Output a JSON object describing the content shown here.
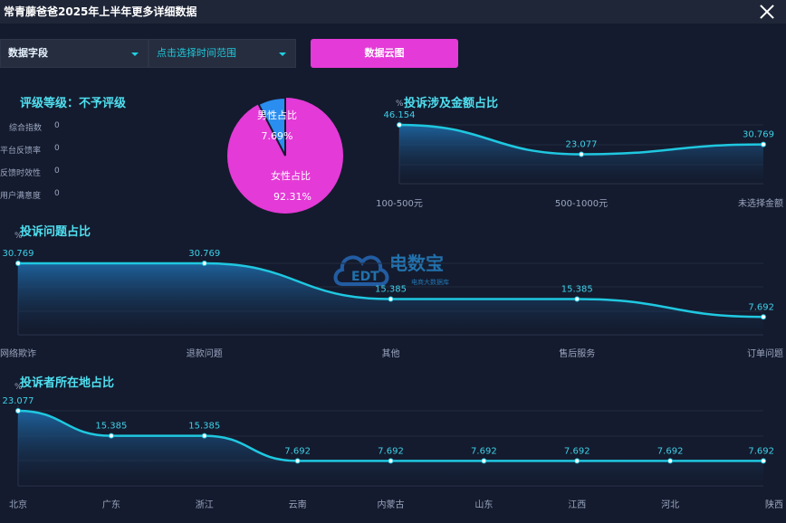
{
  "window": {
    "title": "常青藤爸爸2025年上半年更多详细数据"
  },
  "controls": {
    "field_select": "数据字段",
    "time_select": "点击选择时间范围",
    "cloud_button": "数据云图"
  },
  "rating": {
    "title": "评级等级：不予评级",
    "metrics": [
      {
        "label": "综合指数",
        "value": "0"
      },
      {
        "label": "平台反馈率",
        "value": "0"
      },
      {
        "label": "反馈时效性",
        "value": "0"
      },
      {
        "label": "用户满意度",
        "value": "0"
      }
    ]
  },
  "gender": {
    "male_label": "男性占比",
    "male_value": "7.69%",
    "female_label": "女性占比",
    "female_value": "92.31%",
    "male_color": "#2a8df0",
    "female_color": "#e43ad7"
  },
  "watermark": {
    "brand": "电数宝",
    "sub": "电商大数据库",
    "logo_text": "EDT"
  },
  "chart_data": [
    {
      "type": "area",
      "title": "投诉涉及金额占比",
      "ylabel": "%",
      "categories": [
        "100-500元",
        "500-1000元",
        "未选择金额"
      ],
      "values": [
        46.154,
        23.077,
        30.769
      ],
      "labels": [
        "46.154",
        "23.077",
        "30.769"
      ]
    },
    {
      "type": "area",
      "title": "投诉问题占比",
      "ylabel": "%",
      "categories": [
        "网络欺诈",
        "退款问题",
        "其他",
        "售后服务",
        "订单问题"
      ],
      "values": [
        30.769,
        30.769,
        15.385,
        15.385,
        7.692
      ],
      "labels": [
        "30.769",
        "30.769",
        "15.385",
        "15.385",
        "7.692"
      ]
    },
    {
      "type": "area",
      "title": "投诉者所在地占比",
      "ylabel": "%",
      "categories": [
        "北京",
        "广东",
        "浙江",
        "云南",
        "内蒙古",
        "山东",
        "江西",
        "河北",
        "陕西"
      ],
      "values": [
        23.077,
        15.385,
        15.385,
        7.692,
        7.692,
        7.692,
        7.692,
        7.692,
        7.692
      ],
      "labels": [
        "23.077",
        "15.385",
        "15.385",
        "7.692",
        "7.692",
        "7.692",
        "7.692",
        "7.692",
        "7.692"
      ]
    }
  ]
}
